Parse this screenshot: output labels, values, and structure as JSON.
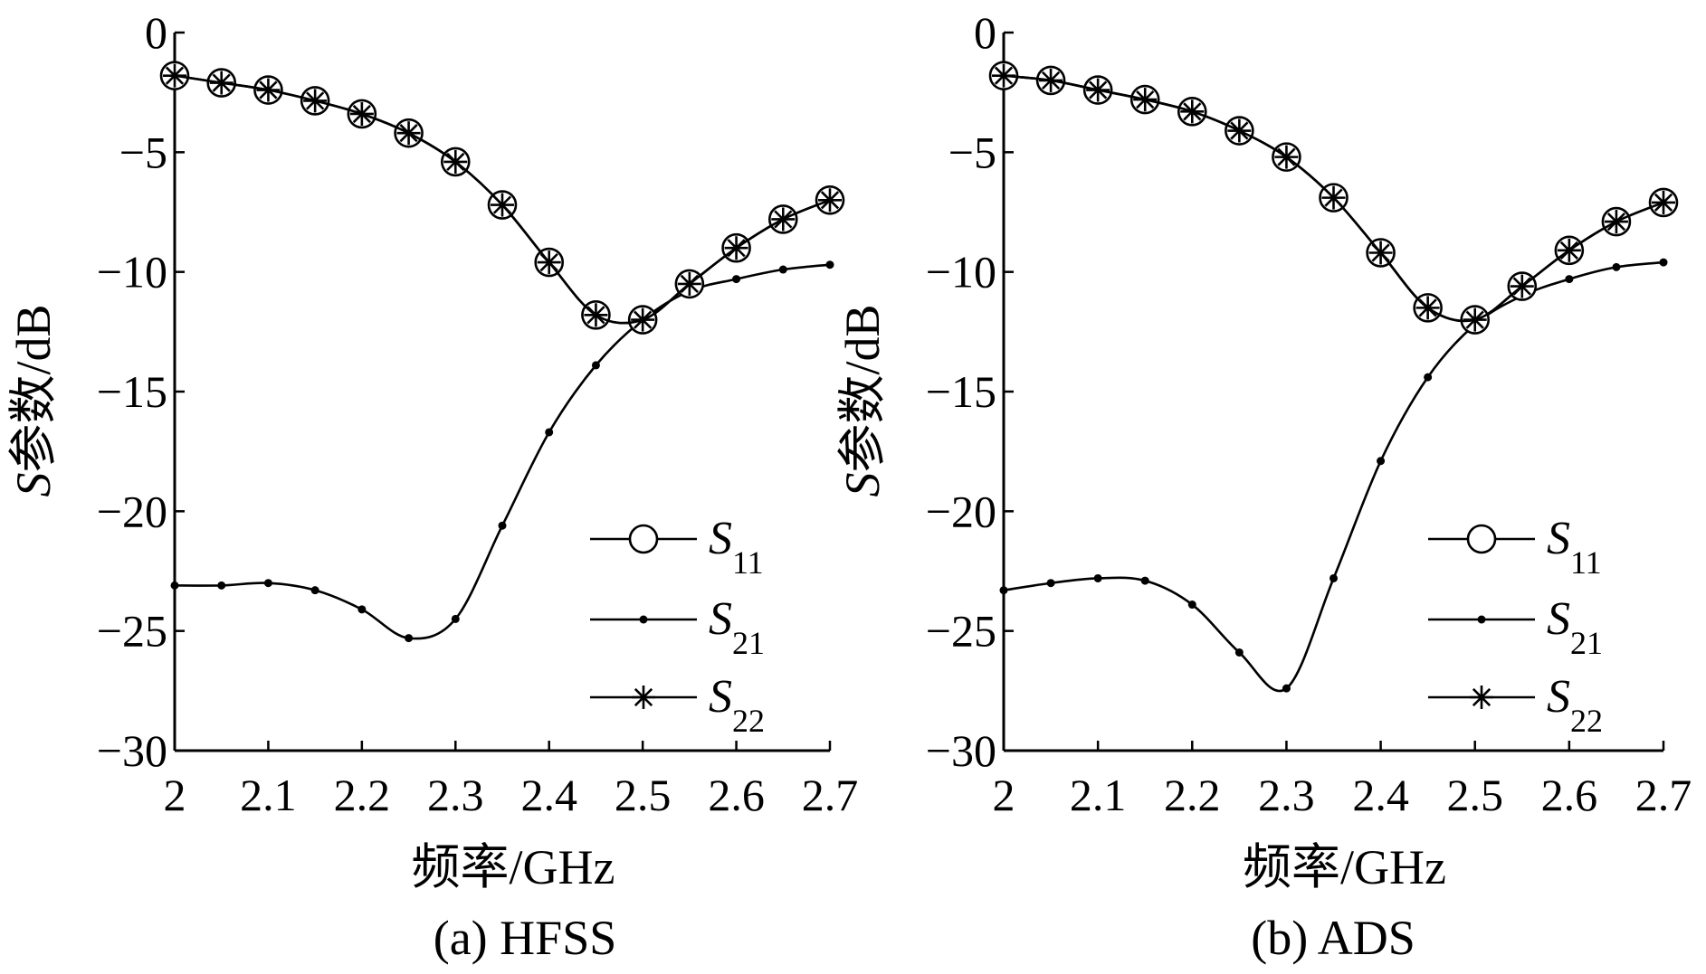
{
  "chart_data": [
    {
      "type": "line",
      "panel": "a",
      "caption": "(a) HFSS",
      "xlabel": "频率/GHz",
      "ylabel_italic": "S",
      "ylabel_rest": "参数/dB",
      "xlim": [
        2,
        2.7
      ],
      "ylim": [
        -30,
        0
      ],
      "xticks": [
        2,
        2.1,
        2.2,
        2.3,
        2.4,
        2.5,
        2.6,
        2.7
      ],
      "xtick_labels": [
        "2",
        "2.1",
        "2.2",
        "2.3",
        "2.4",
        "2.5",
        "2.6",
        "2.7"
      ],
      "yticks": [
        0,
        -5,
        -10,
        -15,
        -20,
        -25,
        -30
      ],
      "ytick_labels": [
        "0",
        "−5",
        "−10",
        "−15",
        "−20",
        "−25",
        "−30"
      ],
      "legend_position": "lower-right",
      "series": [
        {
          "name": "S11",
          "label_main": "S",
          "label_sub": "11",
          "marker": "circle",
          "x": [
            2.0,
            2.05,
            2.1,
            2.15,
            2.2,
            2.25,
            2.3,
            2.35,
            2.4,
            2.45,
            2.5,
            2.55,
            2.6,
            2.65,
            2.7
          ],
          "y": [
            -1.8,
            -2.1,
            -2.4,
            -2.85,
            -3.4,
            -4.2,
            -5.4,
            -7.2,
            -9.6,
            -11.8,
            -12.0,
            -10.5,
            -9.0,
            -7.8,
            -7.0
          ]
        },
        {
          "name": "S21",
          "label_main": "S",
          "label_sub": "21",
          "marker": "dot",
          "x": [
            2.0,
            2.05,
            2.1,
            2.15,
            2.2,
            2.25,
            2.3,
            2.35,
            2.4,
            2.45,
            2.5,
            2.55,
            2.6,
            2.65,
            2.7
          ],
          "y": [
            -23.1,
            -23.1,
            -23.0,
            -23.3,
            -24.1,
            -25.3,
            -24.5,
            -20.6,
            -16.7,
            -13.9,
            -12.0,
            -10.8,
            -10.3,
            -9.9,
            -9.7
          ]
        },
        {
          "name": "S22",
          "label_main": "S",
          "label_sub": "22",
          "marker": "asterisk",
          "x": [
            2.0,
            2.05,
            2.1,
            2.15,
            2.2,
            2.25,
            2.3,
            2.35,
            2.4,
            2.45,
            2.5,
            2.55,
            2.6,
            2.65,
            2.7
          ],
          "y": [
            -1.8,
            -2.1,
            -2.4,
            -2.85,
            -3.4,
            -4.2,
            -5.4,
            -7.2,
            -9.6,
            -11.8,
            -12.0,
            -10.5,
            -9.0,
            -7.8,
            -7.0
          ]
        }
      ]
    },
    {
      "type": "line",
      "panel": "b",
      "caption": "(b) ADS",
      "xlabel": "频率/GHz",
      "ylabel_italic": "S",
      "ylabel_rest": "参数/dB",
      "xlim": [
        2,
        2.7
      ],
      "ylim": [
        -30,
        0
      ],
      "xticks": [
        2,
        2.1,
        2.2,
        2.3,
        2.4,
        2.5,
        2.6,
        2.7
      ],
      "xtick_labels": [
        "2",
        "2.1",
        "2.2",
        "2.3",
        "2.4",
        "2.5",
        "2.6",
        "2.7"
      ],
      "yticks": [
        0,
        -5,
        -10,
        -15,
        -20,
        -25,
        -30
      ],
      "ytick_labels": [
        "0",
        "−5",
        "−10",
        "−15",
        "−20",
        "−25",
        "−30"
      ],
      "legend_position": "lower-right",
      "series": [
        {
          "name": "S11",
          "label_main": "S",
          "label_sub": "11",
          "marker": "circle",
          "x": [
            2.0,
            2.05,
            2.1,
            2.15,
            2.2,
            2.25,
            2.3,
            2.35,
            2.4,
            2.45,
            2.5,
            2.55,
            2.6,
            2.65,
            2.7
          ],
          "y": [
            -1.8,
            -2.0,
            -2.4,
            -2.8,
            -3.3,
            -4.1,
            -5.2,
            -6.9,
            -9.2,
            -11.5,
            -12.0,
            -10.6,
            -9.1,
            -7.9,
            -7.1
          ]
        },
        {
          "name": "S21",
          "label_main": "S",
          "label_sub": "21",
          "marker": "dot",
          "x": [
            2.0,
            2.05,
            2.1,
            2.15,
            2.2,
            2.25,
            2.3,
            2.35,
            2.4,
            2.45,
            2.5,
            2.55,
            2.6,
            2.65,
            2.7
          ],
          "y": [
            -23.3,
            -23.0,
            -22.8,
            -22.9,
            -23.9,
            -25.9,
            -27.4,
            -22.8,
            -17.9,
            -14.4,
            -12.2,
            -11.0,
            -10.3,
            -9.8,
            -9.6
          ]
        },
        {
          "name": "S22",
          "label_main": "S",
          "label_sub": "22",
          "marker": "asterisk",
          "x": [
            2.0,
            2.05,
            2.1,
            2.15,
            2.2,
            2.25,
            2.3,
            2.35,
            2.4,
            2.45,
            2.5,
            2.55,
            2.6,
            2.65,
            2.7
          ],
          "y": [
            -1.8,
            -2.0,
            -2.4,
            -2.8,
            -3.3,
            -4.1,
            -5.2,
            -6.9,
            -9.2,
            -11.5,
            -12.0,
            -10.6,
            -9.1,
            -7.9,
            -7.1
          ]
        }
      ]
    }
  ]
}
